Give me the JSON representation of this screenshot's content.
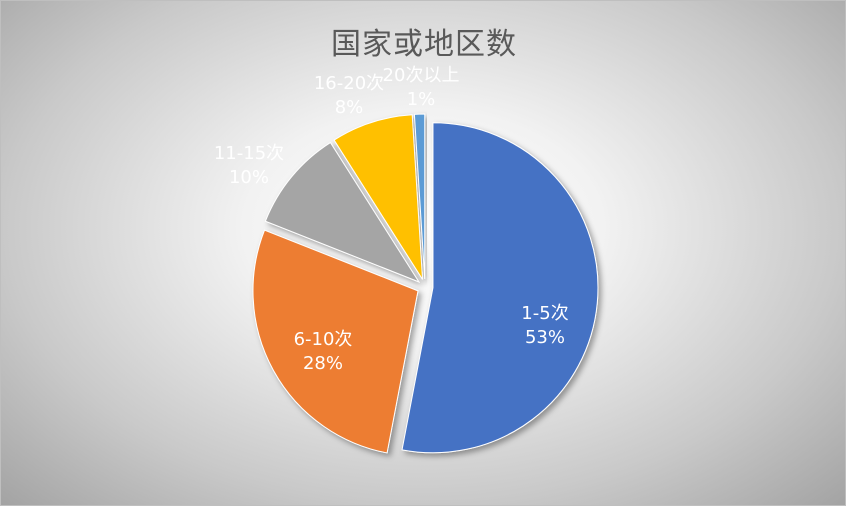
{
  "chart_data": {
    "type": "pie",
    "title": "国家或地区数",
    "slices": [
      {
        "category": "1-5次",
        "percent_label": "53%",
        "value": 53,
        "color": "#4472C4",
        "label_color": "#ffffff"
      },
      {
        "category": "6-10次",
        "percent_label": "28%",
        "value": 28,
        "color": "#ED7D31",
        "label_color": "#ffffff"
      },
      {
        "category": "11-15次",
        "percent_label": "10%",
        "value": 10,
        "color": "#A5A5A5",
        "label_color": "#ffffff"
      },
      {
        "category": "16-20次",
        "percent_label": "8%",
        "value": 8,
        "color": "#FFC000",
        "label_color": "#ffffff"
      },
      {
        "category": "20次以上",
        "percent_label": "1%",
        "value": 1,
        "color": "#5B9BD5",
        "label_color": "#ffffff"
      }
    ],
    "legend": "none",
    "exploded": true
  }
}
